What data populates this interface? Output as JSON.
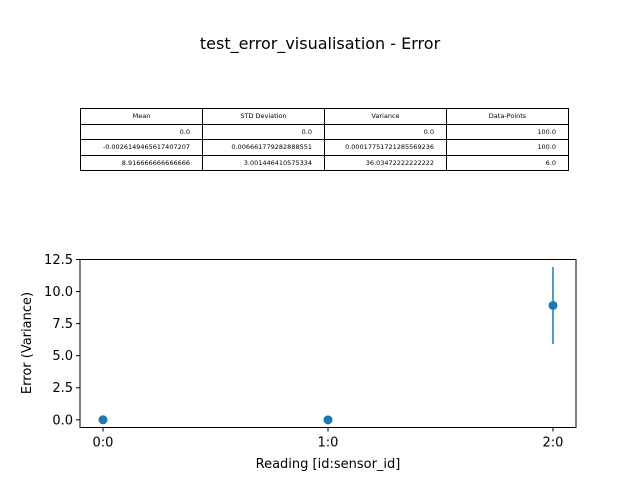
{
  "title": "test_error_visualisation - Error",
  "table": {
    "headers": [
      "Mean",
      "STD Deviation",
      "Variance",
      "Data-Points"
    ],
    "rows": [
      [
        "0.0",
        "0.0",
        "0.0",
        "100.0"
      ],
      [
        "-0.0026149465617407207",
        "0.006661779282888551",
        "0.00017751721285569236",
        "100.0"
      ],
      [
        "8.916666666666666",
        "3.001446410575334",
        "36.03472222222222",
        "6.0"
      ]
    ]
  },
  "chart_data": {
    "type": "scatter",
    "title": "test_error_visualisation - Error",
    "xlabel": "Reading [id:sensor_id]",
    "ylabel": "Error (Variance)",
    "categories": [
      "0:0",
      "1:0",
      "2:0"
    ],
    "values": [
      0.0,
      -0.0026149465617407207,
      8.916666666666666
    ],
    "errors": [
      0.0,
      0.006661779282888551,
      3.001446410575334
    ],
    "ylim": [
      -0.6,
      12.5
    ],
    "yticks": [
      0.0,
      2.5,
      5.0,
      7.5,
      10.0,
      12.5
    ],
    "ytick_labels": [
      "0.0",
      "2.5",
      "5.0",
      "7.5",
      "10.0",
      "12.5"
    ],
    "grid": false,
    "color": "#1f77b4"
  }
}
